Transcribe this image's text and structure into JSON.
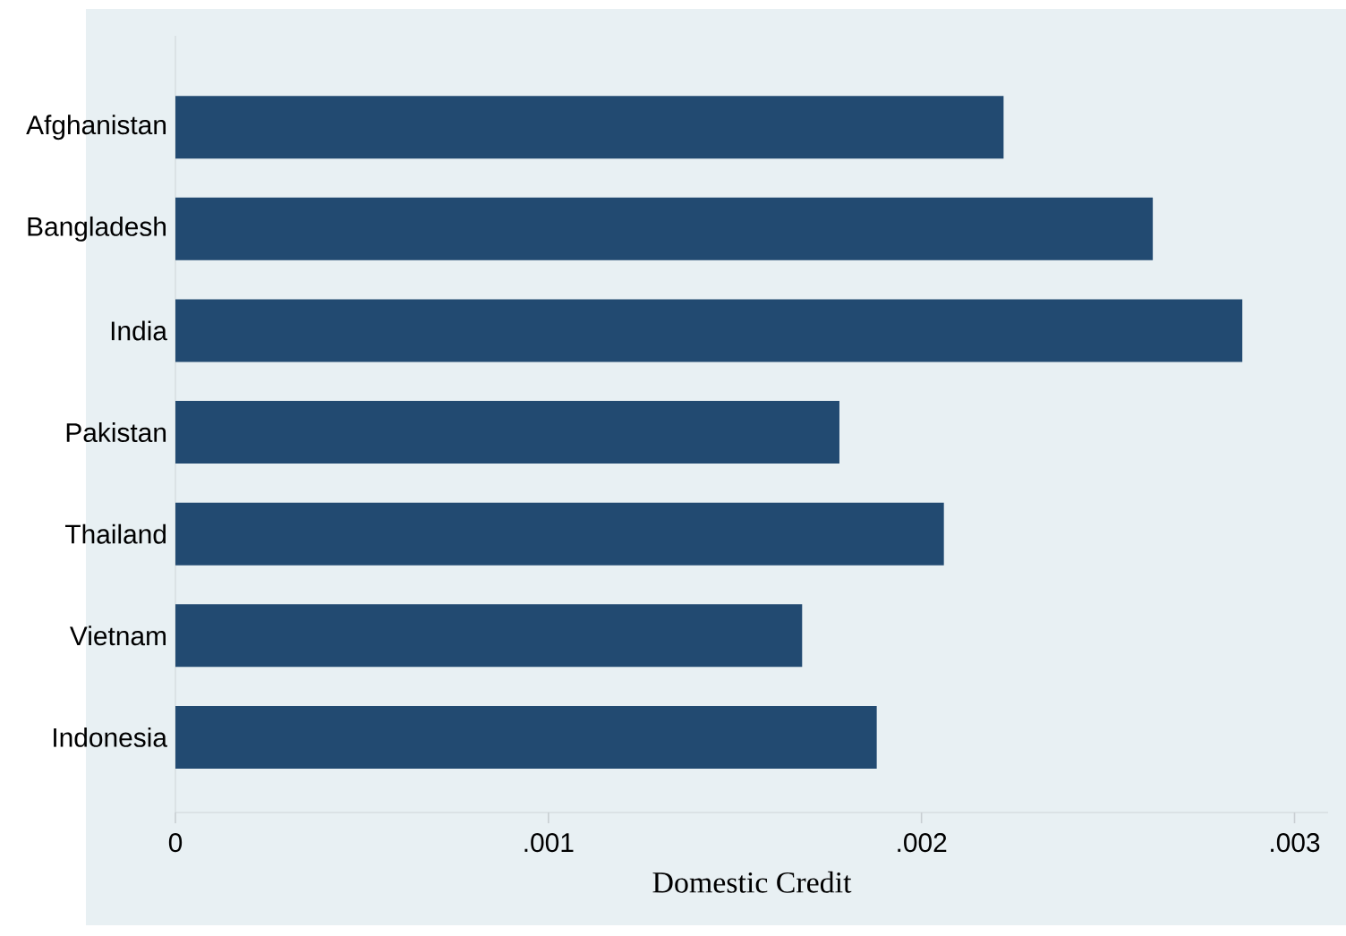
{
  "chart_data": {
    "type": "bar",
    "orientation": "horizontal",
    "xlabel": "Domestic  Credit",
    "categories": [
      "Afghanistan",
      "Bangladesh",
      "India",
      "Pakistan",
      "Thailand",
      "Vietnam",
      "Indonesia"
    ],
    "values": [
      0.00222,
      0.00262,
      0.00286,
      0.00178,
      0.00206,
      0.00168,
      0.00188
    ],
    "color": "#224a71",
    "xlim": [
      0,
      0.00309
    ],
    "xticks": [
      0,
      {
        "value": 0.001,
        "label": ".001"
      },
      {
        "value": 0.002,
        "label": ".002"
      },
      {
        "value": 0.003,
        "label": ".003"
      }
    ]
  }
}
